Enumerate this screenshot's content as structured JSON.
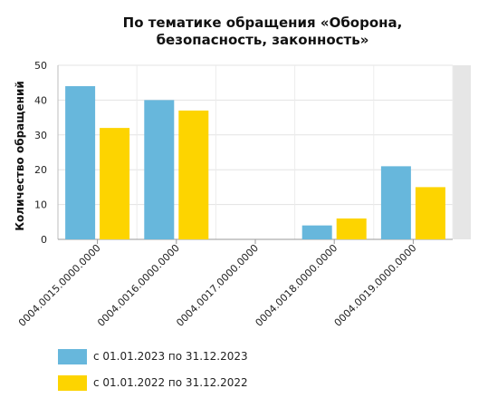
{
  "chart_data": {
    "type": "bar",
    "title_lines": [
      "По тематике обращения «Оборона,",
      "безопасность, законность»"
    ],
    "ylabel": "Количество обращений",
    "xlabel": "",
    "ylim": [
      0,
      50
    ],
    "yticks": [
      0,
      10,
      20,
      30,
      40,
      50
    ],
    "categories": [
      "0004.0015.0000.0000",
      "0004.0016.0000.0000",
      "0004.0017.0000.0000",
      "0004.0018.0000.0000",
      "0004.0019.0000.0000"
    ],
    "series": [
      {
        "name": "с 01.01.2023 по 31.12.2023",
        "color": "#67b7dc",
        "values": [
          44,
          40,
          0,
          4,
          21
        ]
      },
      {
        "name": "с 01.01.2022 по 31.12.2022",
        "color": "#fdd400",
        "values": [
          32,
          37,
          0,
          6,
          15
        ]
      }
    ],
    "grid": true,
    "legend_position": "bottom-left"
  }
}
